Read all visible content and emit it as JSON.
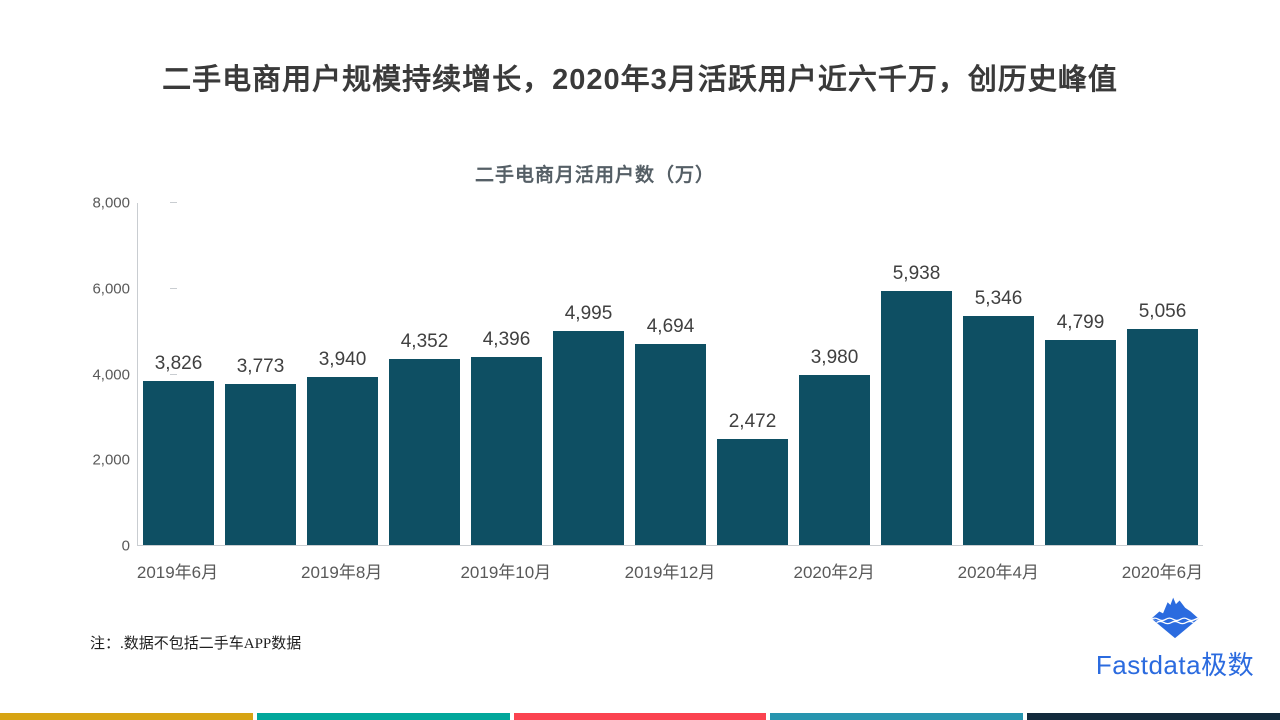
{
  "header": {
    "title": "二手电商用户规模持续增长，2020年3月活跃用户近六千万，创历史峰值"
  },
  "chart_data": {
    "type": "bar",
    "title": "二手电商月活用户数（万）",
    "values": [
      3826,
      3773,
      3940,
      4352,
      4396,
      4995,
      4694,
      2472,
      3980,
      5938,
      5346,
      4799,
      5056
    ],
    "data_labels": [
      "3,826",
      "3,773",
      "3,940",
      "4,352",
      "4,396",
      "4,995",
      "4,694",
      "2,472",
      "3,980",
      "5,938",
      "5,346",
      "4,799",
      "5,056"
    ],
    "x_tick_labels": [
      "2019年6月",
      "2019年8月",
      "2019年10月",
      "2019年12月",
      "2020年2月",
      "2020年4月",
      "2020年6月"
    ],
    "x_tick_interval": 2,
    "y_tick_labels": [
      "0",
      "2,000",
      "4,000",
      "6,000",
      "8,000"
    ],
    "ylim": [
      0,
      8000
    ],
    "grid": false,
    "legend_position": "none",
    "bar_color": "#0e4f63",
    "axis_color": "#c9cdd1",
    "label_color": "#404040",
    "tick_label_color": "#595959"
  },
  "footer": {
    "note": "注：.数据不包括二手车APP数据",
    "logo": {
      "text": "Fastdata极数",
      "color": "#2b6bdf",
      "icon": "iceberg-icon"
    },
    "strip_colors": [
      "#d7a413",
      "#01a79b",
      "#fb4350",
      "#2795af",
      "#132a3c"
    ]
  }
}
